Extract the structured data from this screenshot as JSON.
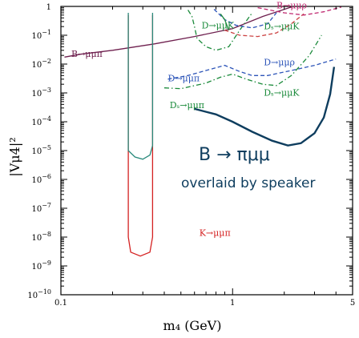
{
  "chart_data": {
    "type": "line",
    "title": "",
    "xlabel": "m₄ (GeV)",
    "ylabel": "|Vμ4|²",
    "xscale": "log",
    "yscale": "log",
    "xlim": [
      0.1,
      5
    ],
    "ylim": [
      1e-10,
      1
    ],
    "x_ticks": [
      {
        "value": 0.1,
        "label": "0.1"
      },
      {
        "value": 1,
        "label": "1"
      },
      {
        "value": 5,
        "label": "5"
      }
    ],
    "y_ticks": [
      {
        "value": 1,
        "label": "1",
        "exp": ""
      },
      {
        "value": 0.1,
        "label": "10",
        "exp": "−1"
      },
      {
        "value": 0.01,
        "label": "10",
        "exp": "−2"
      },
      {
        "value": 0.001,
        "label": "10",
        "exp": "−3"
      },
      {
        "value": 0.0001,
        "label": "10",
        "exp": "−4"
      },
      {
        "value": 1e-05,
        "label": "10",
        "exp": "−5"
      },
      {
        "value": 1e-06,
        "label": "10",
        "exp": "−6"
      },
      {
        "value": 1e-07,
        "label": "10",
        "exp": "−7"
      },
      {
        "value": 1e-08,
        "label": "10",
        "exp": "−8"
      },
      {
        "value": 1e-09,
        "label": "10",
        "exp": "−9"
      },
      {
        "value": 1e-10,
        "label": "10",
        "exp": "−10"
      }
    ],
    "grid": false,
    "legend": "none",
    "series": [
      {
        "name": "B→μμπ (dark red)",
        "label": "B→μμπ",
        "color": "#6e1f4e",
        "style": "solid",
        "points": [
          [
            0.105,
            0.0175
          ],
          [
            0.13,
            0.022
          ],
          [
            0.2,
            0.03
          ],
          [
            0.35,
            0.05
          ],
          [
            0.6,
            0.09
          ],
          [
            1.0,
            0.17
          ],
          [
            1.5,
            0.45
          ],
          [
            2.2,
            0.95
          ]
        ]
      },
      {
        "name": "K→μμπ",
        "label": "K→μμπ",
        "color": "#d42020",
        "style": "solid",
        "points": [
          [
            0.247,
            0.5
          ],
          [
            0.247,
            1e-08
          ],
          [
            0.255,
            3e-09
          ],
          [
            0.29,
            2.2e-09
          ],
          [
            0.33,
            3e-09
          ],
          [
            0.342,
            1e-08
          ],
          [
            0.342,
            0.5
          ]
        ]
      },
      {
        "name": "B→μμπ (teal)",
        "label": "",
        "color": "#2a8a7c",
        "style": "solid",
        "points": [
          [
            0.247,
            0.6
          ],
          [
            0.247,
            1e-05
          ],
          [
            0.27,
            6e-06
          ],
          [
            0.3,
            5e-06
          ],
          [
            0.33,
            7e-06
          ],
          [
            0.342,
            1.5e-05
          ],
          [
            0.342,
            0.6
          ]
        ]
      },
      {
        "name": "D→μμK (green dash-dot)",
        "label": "D→μμK",
        "color": "#1a8a3a",
        "style": "dashdot",
        "points": [
          [
            0.55,
            0.75
          ],
          [
            0.58,
            0.45
          ],
          [
            0.6,
            0.2
          ],
          [
            0.62,
            0.08
          ],
          [
            0.65,
            0.06
          ],
          [
            0.7,
            0.04
          ],
          [
            0.8,
            0.03
          ],
          [
            0.95,
            0.04
          ],
          [
            1.1,
            0.15
          ],
          [
            1.3,
            0.6
          ]
        ]
      },
      {
        "name": "D→μμπ (blue dashed)",
        "label": "D→μμπ",
        "color": "#2c54b8",
        "style": "dashed",
        "points": [
          [
            0.42,
            0.003
          ],
          [
            0.55,
            0.004
          ],
          [
            0.7,
            0.006
          ],
          [
            0.9,
            0.009
          ],
          [
            1.1,
            0.0055
          ],
          [
            1.3,
            0.004
          ],
          [
            1.6,
            0.004
          ],
          [
            2.2,
            0.006
          ],
          [
            3.0,
            0.009
          ],
          [
            4.0,
            0.015
          ]
        ]
      },
      {
        "name": "Dₛ→μμK (green dash-dot)",
        "label": "Dₛ→μμK",
        "color": "#1a8a3a",
        "style": "dashdot",
        "points": [
          [
            0.4,
            0.0015
          ],
          [
            0.5,
            0.0014
          ],
          [
            0.7,
            0.0022
          ],
          [
            0.85,
            0.0035
          ],
          [
            1.0,
            0.0045
          ],
          [
            1.2,
            0.003
          ],
          [
            1.5,
            0.002
          ],
          [
            1.8,
            0.0018
          ],
          [
            2.2,
            0.004
          ],
          [
            2.8,
            0.02
          ],
          [
            3.3,
            0.1
          ]
        ]
      },
      {
        "name": "Dₛ→μμπ (red dashed)",
        "label": "Dₛ→μμπ",
        "color": "#c44",
        "style": "dashed",
        "points": [
          [
            0.9,
            0.15
          ],
          [
            1.1,
            0.1
          ],
          [
            1.4,
            0.09
          ],
          [
            1.8,
            0.12
          ],
          [
            2.2,
            0.25
          ],
          [
            2.6,
            0.55
          ]
        ]
      },
      {
        "name": "D→μμρ (blue dashed)",
        "label": "D→μμρ",
        "color": "#2c54b8",
        "style": "dashed",
        "points": [
          [
            0.78,
            0.8
          ],
          [
            0.9,
            0.35
          ],
          [
            1.05,
            0.22
          ],
          [
            1.3,
            0.18
          ],
          [
            1.6,
            0.25
          ],
          [
            1.8,
            0.6
          ]
        ]
      },
      {
        "name": "B→μμρ (magenta)",
        "label": "B→μμρ",
        "color": "#c02870",
        "style": "dashed",
        "points": [
          [
            1.4,
            0.9
          ],
          [
            2.0,
            0.6
          ],
          [
            2.6,
            0.5
          ],
          [
            3.4,
            0.65
          ],
          [
            4.3,
            0.95
          ]
        ]
      },
      {
        "name": "overlay B→πμμ",
        "label": "",
        "color": "#0e3d5e",
        "style": "solid",
        "points": [
          [
            0.6,
            0.00028
          ],
          [
            0.8,
            0.00018
          ],
          [
            1.0,
            0.0001
          ],
          [
            1.3,
            4.5e-05
          ],
          [
            1.7,
            2.2e-05
          ],
          [
            2.1,
            1.5e-05
          ],
          [
            2.5,
            1.8e-05
          ],
          [
            3.0,
            4e-05
          ],
          [
            3.4,
            0.00014
          ],
          [
            3.7,
            0.0009
          ],
          [
            3.9,
            0.008
          ]
        ]
      },
      {
        "name": "D→μμK (small green)",
        "label": "",
        "color": "#1a8a3a",
        "style": "solid",
        "points": [
          [
            0.85,
            0.55
          ],
          [
            0.9,
            0.35
          ],
          [
            0.95,
            0.15
          ]
        ]
      }
    ],
    "annotations": [
      {
        "text": "B → πμμ",
        "x": 2.2,
        "y": 3.2e-06,
        "color": "#0e3d5e"
      },
      {
        "text": "overlaid by speaker",
        "x": 2.3,
        "y": 4e-07,
        "color": "#0e3d5e"
      }
    ],
    "labels": [
      {
        "text": "B→μμπ",
        "x": 0.115,
        "y": 0.018,
        "color": "#6e1f4e"
      },
      {
        "text": "K→μμπ",
        "x": 0.64,
        "y": 1.1e-08,
        "color": "#d42020"
      },
      {
        "text": "D→μμπ",
        "x": 0.42,
        "y": 0.0025,
        "color": "#2c54b8"
      },
      {
        "text": "Dₛ→μμπ",
        "x": 0.43,
        "y": 0.0003,
        "color": "#1a8a3a"
      },
      {
        "text": "D→μμK",
        "x": 0.66,
        "y": 0.17,
        "color": "#1a8a3a"
      },
      {
        "text": "Dₛ→μμK",
        "x": 1.52,
        "y": 0.16,
        "color": "#1a8a3a"
      },
      {
        "text": "D→μμρ",
        "x": 1.52,
        "y": 0.009,
        "color": "#2c54b8"
      },
      {
        "text": "Dₛ→μμK",
        "x": 1.52,
        "y": 0.0008,
        "color": "#1a8a3a"
      },
      {
        "text": "B→μμρ",
        "x": 1.8,
        "y": 0.85,
        "color": "#c02870"
      }
    ]
  }
}
